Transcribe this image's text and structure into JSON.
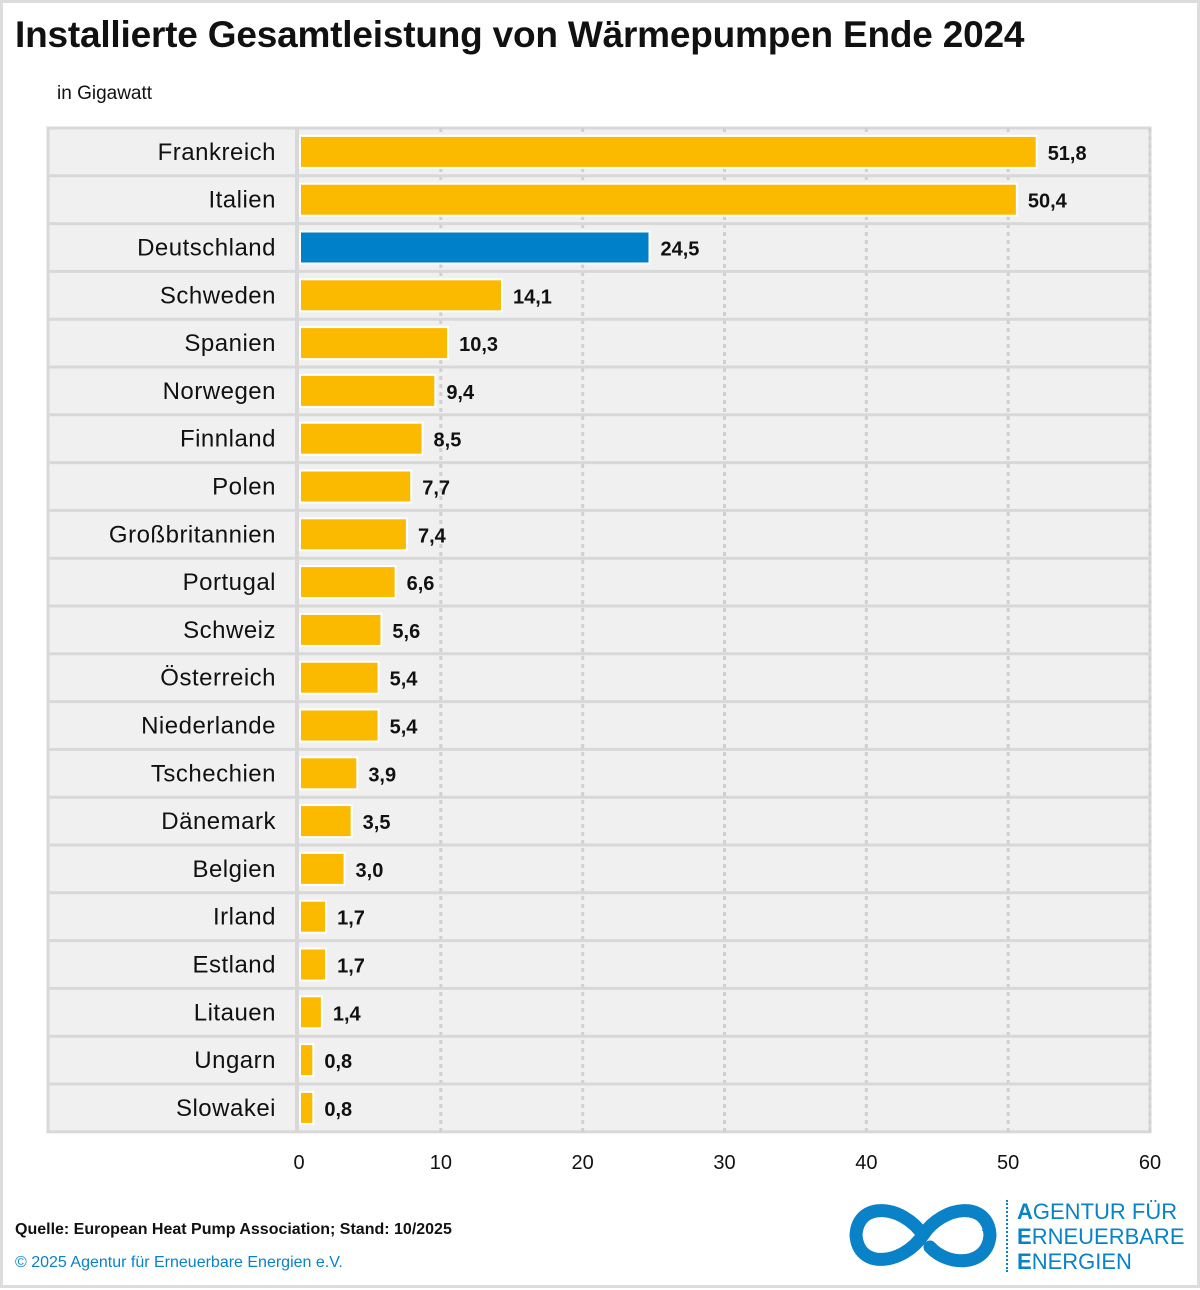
{
  "title": "Installierte Gesamtleistung von Wärmepumpen Ende 2024",
  "unit": "in Gigawatt",
  "footer": {
    "source": "Quelle: European Heat Pump Association; Stand: 10/2025",
    "copyright": "© 2025 Agentur für Erneuerbare Energien e.V."
  },
  "logo": {
    "line1_initial": "A",
    "line1_rest": "GENTUR FÜR",
    "line2_initial": "E",
    "line2_rest": "RNEUERBARE",
    "line3_initial": "E",
    "line3_rest": "NERGIEN"
  },
  "colors": {
    "default_bar": "#fbb900",
    "highlight_bar": "#0080c8",
    "logo": "#0a82c8"
  },
  "chart_data": {
    "type": "bar",
    "orientation": "horizontal",
    "title": "Installierte Gesamtleistung von Wärmepumpen Ende 2024",
    "xlabel": "",
    "ylabel": "in Gigawatt",
    "xlim": [
      0,
      60
    ],
    "xticks": [
      0,
      10,
      20,
      30,
      40,
      50,
      60
    ],
    "grid": true,
    "highlight": "Deutschland",
    "categories": [
      "Frankreich",
      "Italien",
      "Deutschland",
      "Schweden",
      "Spanien",
      "Norwegen",
      "Finnland",
      "Polen",
      "Großbritannien",
      "Portugal",
      "Schweiz",
      "Österreich",
      "Niederlande",
      "Tschechien",
      "Dänemark",
      "Belgien",
      "Irland",
      "Estland",
      "Litauen",
      "Ungarn",
      "Slowakei"
    ],
    "values": [
      51.8,
      50.4,
      24.5,
      14.1,
      10.3,
      9.4,
      8.5,
      7.7,
      7.4,
      6.6,
      5.6,
      5.4,
      5.4,
      3.9,
      3.5,
      3.0,
      1.7,
      1.7,
      1.4,
      0.8,
      0.8
    ],
    "value_labels": [
      "51,8",
      "50,4",
      "24,5",
      "14,1",
      "10,3",
      "9,4",
      "8,5",
      "7,7",
      "7,4",
      "6,6",
      "5,6",
      "5,4",
      "5,4",
      "3,9",
      "3,5",
      "3,0",
      "1,7",
      "1,7",
      "1,4",
      "0,8",
      "0,8"
    ]
  }
}
